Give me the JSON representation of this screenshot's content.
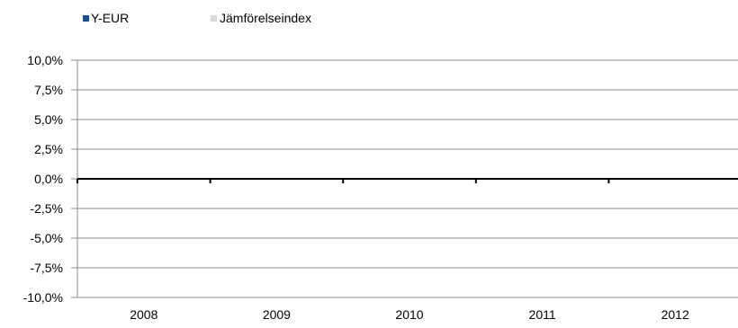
{
  "chart_data": {
    "type": "bar",
    "categories": [
      "2008",
      "2009",
      "2010",
      "2011",
      "2012"
    ],
    "series": [
      {
        "name": "Y-EUR",
        "color": "#1f4e8c",
        "values": [
          0,
          0,
          0,
          0,
          0
        ]
      },
      {
        "name": "Jämförelseindex",
        "color": "#d9d9d9",
        "values": [
          0,
          0,
          0,
          0,
          0
        ]
      }
    ],
    "y_ticks": [
      "10,0%",
      "7,5%",
      "5,0%",
      "2,5%",
      "0,0%",
      "-2,5%",
      "-5,0%",
      "-7,5%",
      "-10,0%"
    ],
    "ylim": [
      -10,
      10
    ],
    "grid": true,
    "legend_position": "top-left"
  }
}
